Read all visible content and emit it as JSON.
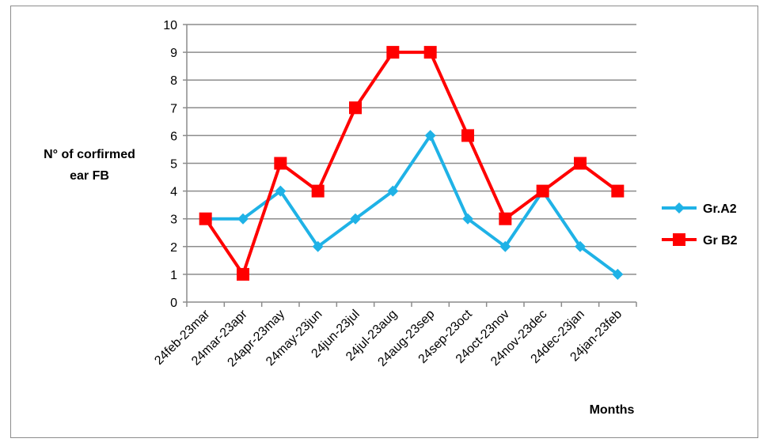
{
  "chart_data": {
    "type": "line",
    "title": "",
    "ylabel_lines": [
      "N° of corfirmed",
      "ear FB"
    ],
    "xlabel": "Months",
    "ylim": [
      0,
      10
    ],
    "yticks": [
      0,
      1,
      2,
      3,
      4,
      5,
      6,
      7,
      8,
      9,
      10
    ],
    "grid": "horizontal",
    "legend_position": "right",
    "categories": [
      "24feb-23mar",
      "24mar-23apr",
      "24apr-23may",
      "24may-23jun",
      "24jun-23jul",
      "24jul-23aug",
      "24aug-23sep",
      "24sep-23oct",
      "24oct-23nov",
      "24nov-23dec",
      "24dec-23jan",
      "24jan-23feb"
    ],
    "series": [
      {
        "name": "Gr.A2",
        "color": "#1fb2e6",
        "marker": "diamond",
        "values": [
          3,
          3,
          4,
          2,
          3,
          4,
          6,
          3,
          2,
          4,
          2,
          1
        ]
      },
      {
        "name": "Gr B2",
        "color": "#ff0000",
        "marker": "square",
        "values": [
          3,
          1,
          5,
          4,
          7,
          9,
          9,
          6,
          3,
          4,
          5,
          4
        ]
      }
    ]
  }
}
